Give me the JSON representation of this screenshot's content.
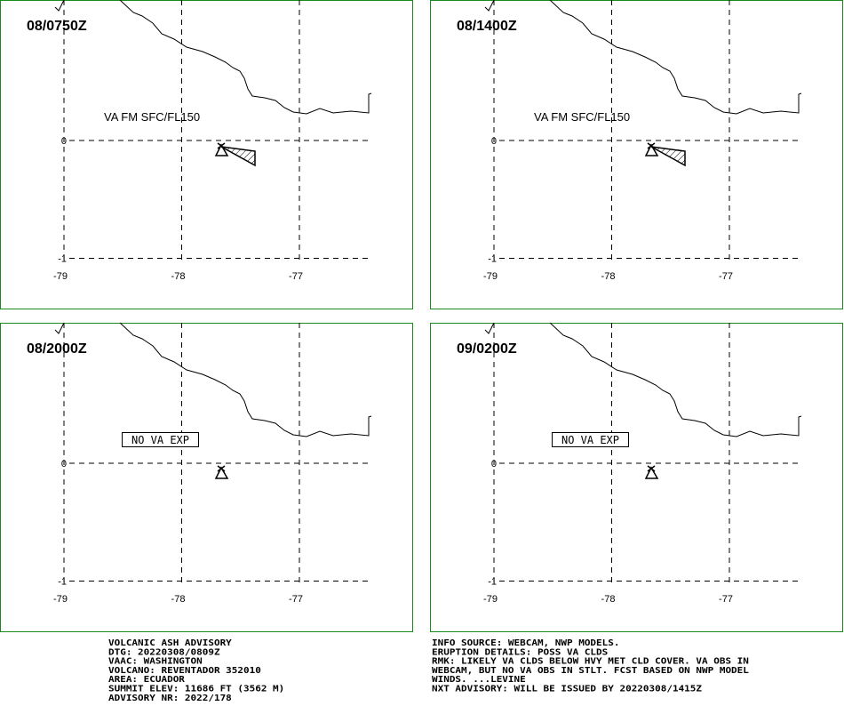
{
  "panels": [
    {
      "time": "08/0750Z",
      "label": "VA FM SFC/FL150",
      "ash": true
    },
    {
      "time": "08/1400Z",
      "label": "VA FM SFC/FL150",
      "ash": true
    },
    {
      "time": "08/2000Z",
      "label": "NO VA EXP",
      "ash": false
    },
    {
      "time": "09/0200Z",
      "label": "NO VA EXP",
      "ash": false
    }
  ],
  "axes": {
    "xticks": [
      -79,
      -78,
      -77
    ],
    "yticks": [
      0,
      -1
    ]
  },
  "advisory": {
    "left": [
      "VOLCANIC ASH ADVISORY",
      "DTG: 20220308/0809Z",
      "VAAC: WASHINGTON",
      "VOLCANO: REVENTADOR 352010",
      "AREA: ECUADOR",
      "SUMMIT ELEV: 11686 FT (3562 M)",
      "ADVISORY NR: 2022/178"
    ],
    "right": [
      "INFO SOURCE: WEBCAM, NWP MODELS.",
      "ERUPTION DETAILS: POSS VA CLDS",
      "RMK: LIKELY VA CLDS BELOW HVY MET CLD COVER. VA OBS IN",
      "WEBCAM, BUT NO VA OBS IN STLT. FCST BASED ON NWP MODEL",
      "WINDS. ...LEVINE",
      "NXT ADVISORY: WILL BE ISSUED BY 20220308/1415Z"
    ]
  }
}
